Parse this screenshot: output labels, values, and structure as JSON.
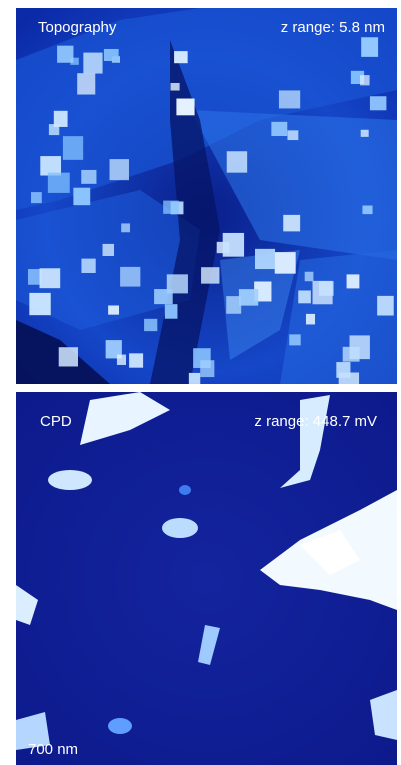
{
  "panels": [
    {
      "label": "Topography",
      "z_range": "z range: 5.8 nm"
    },
    {
      "label": "CPD",
      "z_range": "z range: 448.7 mV",
      "scale_bar": "700 nm"
    }
  ]
}
